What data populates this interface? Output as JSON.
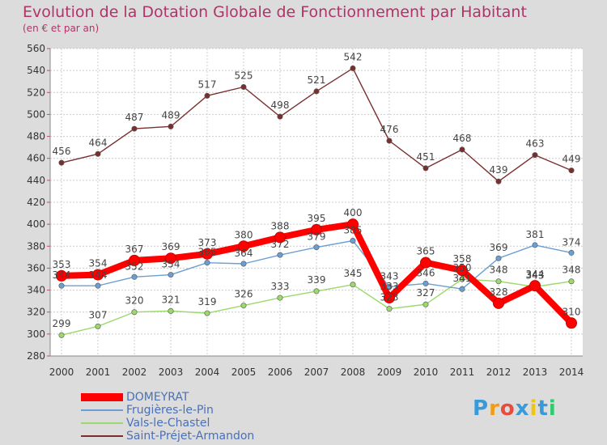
{
  "chart_data": {
    "type": "line",
    "title": "Evolution de la Dotation Globale de Fonctionnement par Habitant",
    "subtitle": "(en € et par an)",
    "x": [
      "2000",
      "2001",
      "2002",
      "2003",
      "2004",
      "2005",
      "2006",
      "2007",
      "2008",
      "2009",
      "2010",
      "2011",
      "2012",
      "2013",
      "2014"
    ],
    "ylim": [
      280,
      560
    ],
    "yticks": [
      280,
      300,
      320,
      340,
      360,
      380,
      400,
      420,
      440,
      460,
      480,
      500,
      520,
      540,
      560
    ],
    "series": [
      {
        "name": "DOMEYRAT",
        "color": "#ff0000",
        "values": [
          353,
          354,
          367,
          369,
          373,
          380,
          388,
          395,
          400,
          333,
          365,
          358,
          328,
          344,
          310
        ],
        "labels": [
          "353",
          "354",
          "367",
          "369",
          "373",
          "380",
          "388",
          "395",
          "400",
          "333",
          "365",
          "358",
          "328",
          "344",
          "310"
        ]
      },
      {
        "name": "Frugières-le-Pin",
        "color": "#6a9fd4",
        "values": [
          344,
          344,
          352,
          354,
          365,
          364,
          372,
          379,
          385,
          343,
          346,
          341,
          369,
          381,
          374
        ],
        "labels": [
          "344",
          "344",
          "352",
          "354",
          "365",
          "364",
          "372",
          "379",
          "385",
          "343",
          "346",
          "341",
          "369",
          "381",
          "374"
        ]
      },
      {
        "name": "Vals-le-Chastel",
        "color": "#9ad96a",
        "values": [
          299,
          307,
          320,
          321,
          319,
          326,
          333,
          339,
          345,
          323,
          327,
          350,
          348,
          343,
          348
        ],
        "labels": [
          "299",
          "307",
          "320",
          "321",
          "319",
          "326",
          "333",
          "339",
          "345",
          "323",
          "327",
          "350",
          "348",
          "343",
          "348"
        ]
      },
      {
        "name": "Saint-Préjet-Armandon",
        "color": "#7a2f2f",
        "values": [
          456,
          464,
          487,
          489,
          517,
          525,
          498,
          521,
          542,
          476,
          451,
          468,
          439,
          463,
          449
        ],
        "labels": [
          "456",
          "464",
          "487",
          "489",
          "517",
          "525",
          "498",
          "521",
          "542",
          "476",
          "451",
          "468",
          "439",
          "463",
          "449"
        ]
      }
    ]
  },
  "legend": {
    "items": [
      "DOMEYRAT",
      "Frugières-le-Pin",
      "Vals-le-Chastel",
      "Saint-Préjet-Armandon"
    ]
  },
  "logo": {
    "letters": [
      "P",
      "r",
      "o",
      "x",
      "i",
      "t",
      "i"
    ],
    "colors": [
      "#3a9ad9",
      "#f39c12",
      "#e74c3c",
      "#3a9ad9",
      "#f1c40f",
      "#3a9ad9",
      "#2ecc71"
    ]
  }
}
